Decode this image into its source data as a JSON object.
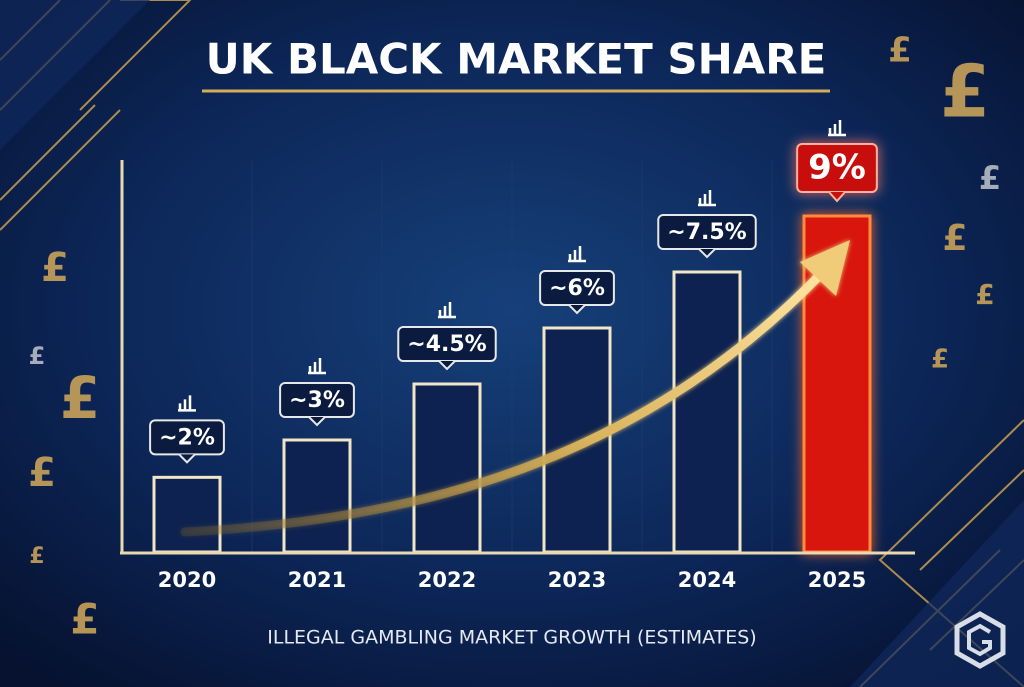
{
  "chart_data": {
    "type": "bar",
    "title": "UK BLACK MARKET SHARE",
    "x_label": "ILLEGAL GAMBLING MARKET GROWTH (ESTIMATES)",
    "categories": [
      "2020",
      "2021",
      "2022",
      "2023",
      "2024",
      "2025"
    ],
    "values": [
      2,
      3,
      4.5,
      6,
      7.5,
      9
    ],
    "value_labels": [
      "~2%",
      "~3%",
      "~4.5%",
      "~6%",
      "~7.5%",
      "9%"
    ],
    "colors": [
      "#0d2250",
      "#0d2250",
      "#0d2250",
      "#0d2250",
      "#0d2250",
      "#d8120c"
    ],
    "ylim": [
      0,
      10.5
    ],
    "background_symbols": [
      "£",
      "£",
      "£",
      "£",
      "£",
      "£",
      "£",
      "£",
      "£",
      "£",
      "£",
      "£"
    ]
  }
}
